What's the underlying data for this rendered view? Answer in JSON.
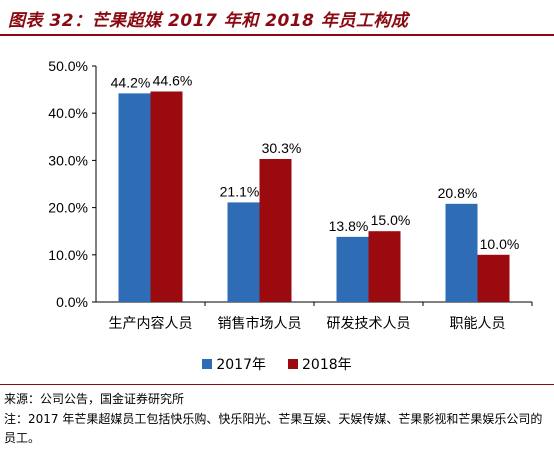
{
  "title": "图表 32：芒果超媒 2017 年和 2018 年员工构成",
  "source": "来源：公司公告，国金证券研究所",
  "note": "注：2017 年芒果超媒员工包括快乐购、快乐阳光、芒果互娱、天娱传媒、芒果影视和芒果娱乐公司的员工。",
  "colors": {
    "accent": "#8b0a12",
    "series_2017": "#2e6db5",
    "series_2018": "#9b0a0f"
  },
  "chart_data": {
    "type": "bar",
    "categories": [
      "生产内容人员",
      "销售市场人员",
      "研发技术人员",
      "职能人员"
    ],
    "series": [
      {
        "name": "2017年",
        "values": [
          44.2,
          21.1,
          13.8,
          20.8
        ],
        "labels": [
          "44.2%",
          "21.1%",
          "13.8%",
          "20.8%"
        ]
      },
      {
        "name": "2018年",
        "values": [
          44.6,
          30.3,
          15.0,
          10.0
        ],
        "labels": [
          "44.6%",
          "30.3%",
          "15.0%",
          "10.0%"
        ]
      }
    ],
    "ylim": [
      0,
      50
    ],
    "yticks": [
      0,
      10,
      20,
      30,
      40,
      50
    ],
    "ytick_labels": [
      "0.0%",
      "10.0%",
      "20.0%",
      "30.0%",
      "40.0%",
      "50.0%"
    ],
    "legend": "bottom",
    "grid": false
  }
}
